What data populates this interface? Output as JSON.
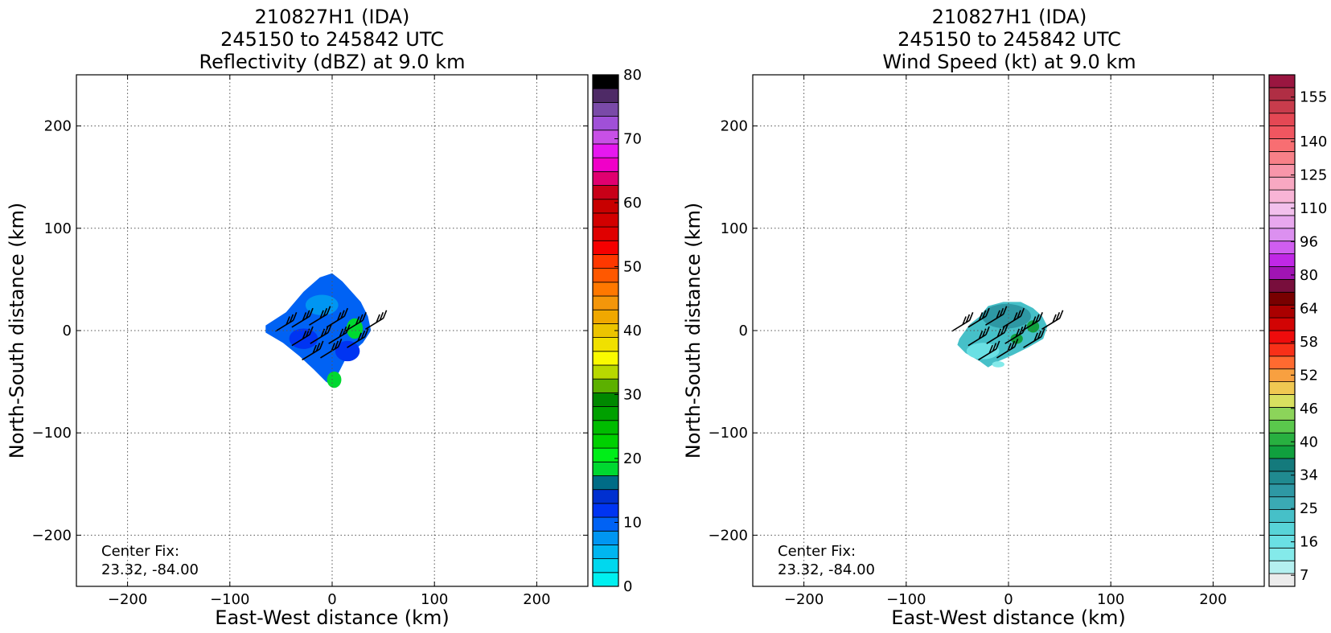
{
  "chart_data": [
    {
      "type": "heatmap",
      "title": [
        "210827H1 (IDA)",
        "245150 to 245842 UTC",
        "Reflectivity (dBZ) at 9.0 km"
      ],
      "xlabel": "East-West distance (km)",
      "ylabel": "North-South distance (km)",
      "xlim": [
        -250,
        250
      ],
      "ylim": [
        -250,
        250
      ],
      "xticks": [
        -200,
        -100,
        0,
        100,
        200
      ],
      "yticks": [
        -200,
        -100,
        0,
        100,
        200
      ],
      "grid": true,
      "annotation": [
        "Center Fix:",
        "23.32, -84.00"
      ],
      "colorbar": {
        "min": 0,
        "max": 80,
        "tick_values": [
          0,
          10,
          20,
          30,
          40,
          50,
          60,
          70,
          80
        ],
        "colors": [
          "#00f0f0",
          "#00d8ee",
          "#00b6f0",
          "#0096f2",
          "#0062f4",
          "#0034f2",
          "#0030d0",
          "#006c86",
          "#00d830",
          "#00ee18",
          "#00d000",
          "#00bc00",
          "#00a000",
          "#008800",
          "#5cb000",
          "#b8d800",
          "#fafa00",
          "#f0e000",
          "#ecc400",
          "#f0a800",
          "#f4960a",
          "#ff7800",
          "#ff5800",
          "#ff3800",
          "#f50000",
          "#e00000",
          "#d20000",
          "#c80000",
          "#c80018",
          "#e00070",
          "#f000c8",
          "#e618f0",
          "#c850e6",
          "#a050d8",
          "#7a4aa8",
          "#4e2a66",
          "#000000"
        ]
      },
      "region_outline": [
        [
          -65,
          5
        ],
        [
          -45,
          18
        ],
        [
          -28,
          38
        ],
        [
          -12,
          52
        ],
        [
          0,
          56
        ],
        [
          10,
          48
        ],
        [
          28,
          28
        ],
        [
          35,
          14
        ],
        [
          38,
          0
        ],
        [
          30,
          -12
        ],
        [
          14,
          -26
        ],
        [
          6,
          -42
        ],
        [
          2,
          -55
        ],
        [
          -6,
          -50
        ],
        [
          -18,
          -38
        ],
        [
          -32,
          -25
        ],
        [
          -48,
          -12
        ],
        [
          -65,
          -2
        ]
      ],
      "blobs": [
        {
          "x": 22,
          "y": 2,
          "rx": 8,
          "ry": 10,
          "color": "#00d830"
        },
        {
          "x": 2,
          "y": -48,
          "rx": 7,
          "ry": 8,
          "color": "#00d830"
        },
        {
          "x": -10,
          "y": 25,
          "rx": 16,
          "ry": 10,
          "color": "#0096f2"
        },
        {
          "x": 15,
          "y": -20,
          "rx": 12,
          "ry": 10,
          "color": "#0034f2"
        },
        {
          "x": -28,
          "y": -8,
          "rx": 14,
          "ry": 10,
          "color": "#0034f2"
        }
      ],
      "wind_barbs": [
        {
          "x": 50,
          "y": 12
        },
        {
          "x": 30,
          "y": 10
        },
        {
          "x": 12,
          "y": 14
        },
        {
          "x": -5,
          "y": 16
        },
        {
          "x": -22,
          "y": 14
        },
        {
          "x": -38,
          "y": 10
        },
        {
          "x": 32,
          "y": -6
        },
        {
          "x": 14,
          "y": -2
        },
        {
          "x": -4,
          "y": -2
        },
        {
          "x": -22,
          "y": -4
        },
        {
          "x": 6,
          "y": -16
        },
        {
          "x": -12,
          "y": -18
        }
      ]
    },
    {
      "type": "heatmap",
      "title": [
        "210827H1 (IDA)",
        "245150 to 245842 UTC",
        "Wind Speed (kt) at 9.0 km"
      ],
      "xlabel": "East-West distance (km)",
      "ylabel": "North-South distance (km)",
      "xlim": [
        -250,
        250
      ],
      "ylim": [
        -250,
        250
      ],
      "xticks": [
        -200,
        -100,
        0,
        100,
        200
      ],
      "yticks": [
        -200,
        -100,
        0,
        100,
        200
      ],
      "grid": true,
      "annotation": [
        "Center Fix:",
        "23.32, -84.00"
      ],
      "colorbar": {
        "min": 0,
        "max": 1,
        "tick_values": [
          7,
          16,
          25,
          34,
          40,
          46,
          52,
          58,
          64,
          80,
          96,
          110,
          125,
          140,
          155
        ],
        "tick_fracs": [
          0.0217,
          0.087,
          0.1522,
          0.2174,
          0.2826,
          0.3478,
          0.413,
          0.4783,
          0.5435,
          0.6087,
          0.6739,
          0.7391,
          0.8043,
          0.8696,
          0.9565
        ],
        "colors": [
          "#ececec",
          "#b4f0f0",
          "#84eaea",
          "#6ae0e4",
          "#58d4d8",
          "#46c0c8",
          "#3aaab4",
          "#2e98a4",
          "#208a90",
          "#147a7c",
          "#10a03e",
          "#28b040",
          "#5ac84c",
          "#8cd45a",
          "#d8e060",
          "#f0c852",
          "#f8a040",
          "#ff6a30",
          "#f83018",
          "#ee0c0c",
          "#d20404",
          "#aa0000",
          "#780000",
          "#780e3c",
          "#a014b4",
          "#c028e6",
          "#d05ef0",
          "#dc90f0",
          "#e8a8ee",
          "#f2c0ec",
          "#f8b4d6",
          "#f8a8c2",
          "#f896aa",
          "#f88088",
          "#f86e72",
          "#f05660",
          "#e44854",
          "#c83c4c",
          "#b02e44",
          "#9a1640"
        ]
      },
      "region_outline": [
        [
          -48,
          -8
        ],
        [
          -38,
          6
        ],
        [
          -28,
          14
        ],
        [
          -20,
          24
        ],
        [
          -5,
          28
        ],
        [
          12,
          28
        ],
        [
          24,
          22
        ],
        [
          33,
          14
        ],
        [
          38,
          4
        ],
        [
          34,
          -8
        ],
        [
          20,
          -16
        ],
        [
          4,
          -24
        ],
        [
          -10,
          -30
        ],
        [
          -20,
          -36
        ],
        [
          -28,
          -30
        ],
        [
          -42,
          -22
        ],
        [
          -50,
          -14
        ]
      ],
      "blobs": [
        {
          "x": -2,
          "y": 14,
          "rx": 24,
          "ry": 12,
          "color": "#2e98a4"
        },
        {
          "x": 24,
          "y": 4,
          "rx": 6,
          "ry": 6,
          "color": "#10a03e"
        },
        {
          "x": 8,
          "y": -8,
          "rx": 6,
          "ry": 5,
          "color": "#10a03e"
        },
        {
          "x": -25,
          "y": -20,
          "rx": 16,
          "ry": 8,
          "color": "#6ae0e4"
        },
        {
          "x": -10,
          "y": -33,
          "rx": 6,
          "ry": 3,
          "color": "#84eaea"
        }
      ],
      "wind_barbs": [
        {
          "x": 50,
          "y": 12
        },
        {
          "x": 30,
          "y": 10
        },
        {
          "x": 12,
          "y": 14
        },
        {
          "x": -5,
          "y": 16
        },
        {
          "x": -22,
          "y": 14
        },
        {
          "x": -38,
          "y": 10
        },
        {
          "x": 32,
          "y": -6
        },
        {
          "x": 14,
          "y": -2
        },
        {
          "x": -4,
          "y": -2
        },
        {
          "x": -22,
          "y": -4
        },
        {
          "x": 6,
          "y": -16
        },
        {
          "x": -12,
          "y": -18
        }
      ]
    }
  ]
}
